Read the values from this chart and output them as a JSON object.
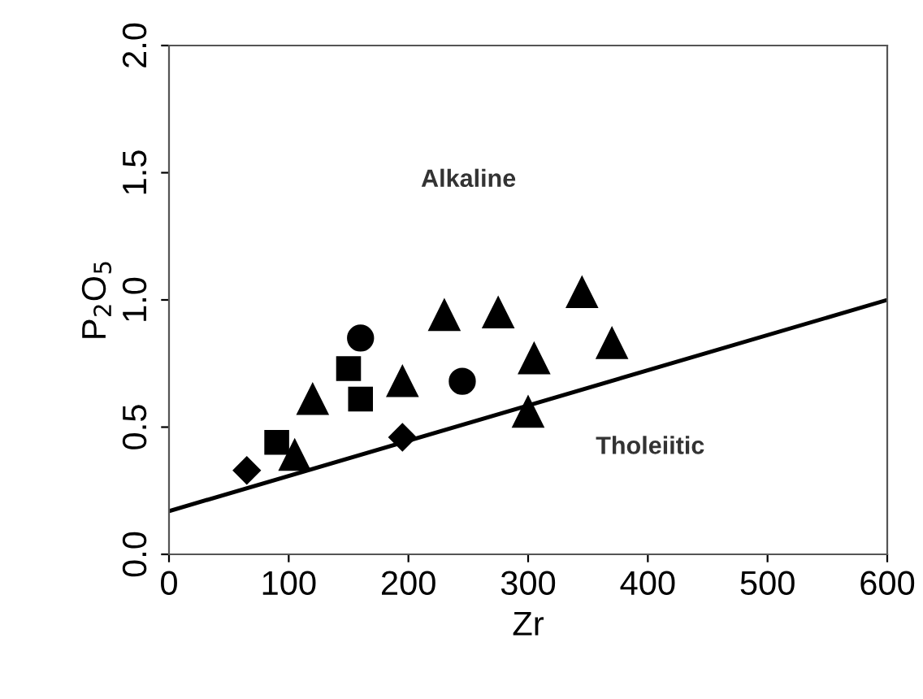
{
  "chart_data": {
    "type": "scatter",
    "xlabel": "Zr",
    "ylabel": "P$_{2}$O$_{5}$",
    "xlim": [
      0,
      600
    ],
    "ylim": [
      0,
      2.0
    ],
    "xticks": [
      0,
      100,
      200,
      300,
      400,
      500,
      600
    ],
    "yticks": [
      {
        "value": 0,
        "label": "0.0"
      },
      0.5,
      {
        "value": 1,
        "label": "1.0"
      },
      1.5,
      {
        "value": 2,
        "label": "2.0"
      }
    ],
    "grid": false,
    "legend": false,
    "series": [
      {
        "color": "#000000",
        "marker": "diamond",
        "x": [
          65,
          195
        ],
        "values": [
          0.33,
          0.46
        ]
      },
      {
        "color": "#000000",
        "marker": "square",
        "x": [
          90,
          150,
          160
        ],
        "values": [
          0.44,
          0.73,
          0.61
        ]
      },
      {
        "color": "#000000",
        "marker": "circle",
        "x": [
          160,
          245
        ],
        "values": [
          0.85,
          0.68
        ]
      },
      {
        "color": "#000000",
        "marker": "triangle",
        "x": [
          105,
          120,
          195,
          230,
          275,
          305,
          345,
          370,
          300
        ],
        "values": [
          0.39,
          0.61,
          0.68,
          0.94,
          0.95,
          0.77,
          1.03,
          0.83,
          0.56
        ]
      },
      {
        "type": "line",
        "color": "#000000",
        "marker": "none",
        "line_style": "solid",
        "x": [
          0,
          600
        ],
        "values": [
          0.17,
          1.0
        ]
      }
    ],
    "annotations": [
      "Alkaline",
      "Tholeiitic"
    ]
  }
}
